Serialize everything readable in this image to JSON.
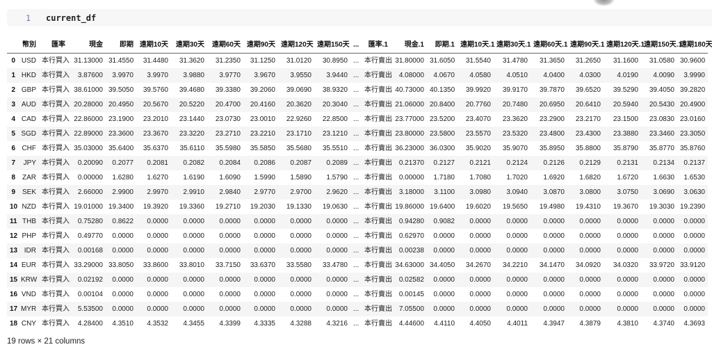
{
  "cell": {
    "line_number": "1",
    "code": "current_df"
  },
  "table": {
    "columns": [
      "幣別",
      "匯率",
      "現金",
      "即期",
      "遠期10天",
      "遠期30天",
      "遠期60天",
      "遠期90天",
      "遠期120天",
      "遠期150天",
      "...",
      "匯率.1",
      "現金.1",
      "即期.1",
      "遠期10天.1",
      "遠期30天.1",
      "遠期60天.1",
      "遠期90天.1",
      "遠期120天.1",
      "遠期150天.1",
      "遠期180天.1"
    ],
    "rows": [
      {
        "index": "0",
        "cells": [
          "USD",
          "本行買入",
          "31.13000",
          "31.4550",
          "31.4480",
          "31.3620",
          "31.2350",
          "31.1250",
          "31.0120",
          "30.8950",
          "...",
          "本行賣出",
          "31.80000",
          "31.6050",
          "31.5540",
          "31.4780",
          "31.3650",
          "31.2650",
          "31.1600",
          "31.0580",
          "30.9600"
        ]
      },
      {
        "index": "1",
        "cells": [
          "HKD",
          "本行買入",
          "3.87600",
          "3.9970",
          "3.9970",
          "3.9880",
          "3.9770",
          "3.9670",
          "3.9550",
          "3.9440",
          "...",
          "本行賣出",
          "4.08000",
          "4.0670",
          "4.0580",
          "4.0510",
          "4.0400",
          "4.0300",
          "4.0190",
          "4.0090",
          "3.9990"
        ]
      },
      {
        "index": "2",
        "cells": [
          "GBP",
          "本行買入",
          "38.61000",
          "39.5050",
          "39.5760",
          "39.4680",
          "39.3380",
          "39.2060",
          "39.0690",
          "38.9320",
          "...",
          "本行賣出",
          "40.73000",
          "40.1350",
          "39.9920",
          "39.9170",
          "39.7870",
          "39.6520",
          "39.5290",
          "39.4050",
          "39.2820"
        ]
      },
      {
        "index": "3",
        "cells": [
          "AUD",
          "本行買入",
          "20.28000",
          "20.4950",
          "20.5670",
          "20.5220",
          "20.4700",
          "20.4160",
          "20.3620",
          "20.3040",
          "...",
          "本行賣出",
          "21.06000",
          "20.8400",
          "20.7760",
          "20.7480",
          "20.6950",
          "20.6410",
          "20.5940",
          "20.5430",
          "20.4900"
        ]
      },
      {
        "index": "4",
        "cells": [
          "CAD",
          "本行買入",
          "22.86000",
          "23.1900",
          "23.2010",
          "23.1440",
          "23.0730",
          "23.0010",
          "22.9260",
          "22.8500",
          "...",
          "本行賣出",
          "23.77000",
          "23.5200",
          "23.4070",
          "23.3620",
          "23.2900",
          "23.2170",
          "23.1500",
          "23.0830",
          "23.0160"
        ]
      },
      {
        "index": "5",
        "cells": [
          "SGD",
          "本行買入",
          "22.89000",
          "23.3600",
          "23.3670",
          "23.3220",
          "23.2710",
          "23.2210",
          "23.1710",
          "23.1210",
          "...",
          "本行賣出",
          "23.80000",
          "23.5800",
          "23.5570",
          "23.5320",
          "23.4800",
          "23.4300",
          "23.3880",
          "23.3460",
          "23.3050"
        ]
      },
      {
        "index": "6",
        "cells": [
          "CHF",
          "本行買入",
          "35.03000",
          "35.6400",
          "35.6370",
          "35.6110",
          "35.5980",
          "35.5850",
          "35.5680",
          "35.5510",
          "...",
          "本行賣出",
          "36.23000",
          "36.0300",
          "35.9020",
          "35.9070",
          "35.8950",
          "35.8800",
          "35.8790",
          "35.8770",
          "35.8760"
        ]
      },
      {
        "index": "7",
        "cells": [
          "JPY",
          "本行買入",
          "0.20090",
          "0.2077",
          "0.2081",
          "0.2082",
          "0.2084",
          "0.2086",
          "0.2087",
          "0.2089",
          "...",
          "本行賣出",
          "0.21370",
          "0.2127",
          "0.2121",
          "0.2124",
          "0.2126",
          "0.2129",
          "0.2131",
          "0.2134",
          "0.2137"
        ]
      },
      {
        "index": "8",
        "cells": [
          "ZAR",
          "本行買入",
          "0.00000",
          "1.6280",
          "1.6270",
          "1.6190",
          "1.6090",
          "1.5990",
          "1.5890",
          "1.5790",
          "...",
          "本行賣出",
          "0.00000",
          "1.7180",
          "1.7080",
          "1.7020",
          "1.6920",
          "1.6820",
          "1.6720",
          "1.6630",
          "1.6530"
        ]
      },
      {
        "index": "9",
        "cells": [
          "SEK",
          "本行買入",
          "2.66000",
          "2.9900",
          "2.9970",
          "2.9910",
          "2.9840",
          "2.9770",
          "2.9700",
          "2.9620",
          "...",
          "本行賣出",
          "3.18000",
          "3.1100",
          "3.0980",
          "3.0940",
          "3.0870",
          "3.0800",
          "3.0750",
          "3.0690",
          "3.0630"
        ]
      },
      {
        "index": "10",
        "cells": [
          "NZD",
          "本行買入",
          "19.01000",
          "19.3400",
          "19.3920",
          "19.3360",
          "19.2710",
          "19.2030",
          "19.1330",
          "19.0630",
          "...",
          "本行賣出",
          "19.86000",
          "19.6400",
          "19.6020",
          "19.5650",
          "19.4980",
          "19.4310",
          "19.3670",
          "19.3030",
          "19.2390"
        ]
      },
      {
        "index": "11",
        "cells": [
          "THB",
          "本行買入",
          "0.75280",
          "0.8622",
          "0.0000",
          "0.0000",
          "0.0000",
          "0.0000",
          "0.0000",
          "0.0000",
          "...",
          "本行賣出",
          "0.94280",
          "0.9082",
          "0.0000",
          "0.0000",
          "0.0000",
          "0.0000",
          "0.0000",
          "0.0000",
          "0.0000"
        ]
      },
      {
        "index": "12",
        "cells": [
          "PHP",
          "本行買入",
          "0.49770",
          "0.0000",
          "0.0000",
          "0.0000",
          "0.0000",
          "0.0000",
          "0.0000",
          "0.0000",
          "...",
          "本行賣出",
          "0.62970",
          "0.0000",
          "0.0000",
          "0.0000",
          "0.0000",
          "0.0000",
          "0.0000",
          "0.0000",
          "0.0000"
        ]
      },
      {
        "index": "13",
        "cells": [
          "IDR",
          "本行買入",
          "0.00168",
          "0.0000",
          "0.0000",
          "0.0000",
          "0.0000",
          "0.0000",
          "0.0000",
          "0.0000",
          "...",
          "本行賣出",
          "0.00238",
          "0.0000",
          "0.0000",
          "0.0000",
          "0.0000",
          "0.0000",
          "0.0000",
          "0.0000",
          "0.0000"
        ]
      },
      {
        "index": "14",
        "cells": [
          "EUR",
          "本行買入",
          "33.29000",
          "33.8050",
          "33.8600",
          "33.8010",
          "33.7150",
          "33.6370",
          "33.5580",
          "33.4780",
          "...",
          "本行賣出",
          "34.63000",
          "34.4050",
          "34.2670",
          "34.2210",
          "34.1470",
          "34.0920",
          "34.0320",
          "33.9720",
          "33.9120"
        ]
      },
      {
        "index": "15",
        "cells": [
          "KRW",
          "本行買入",
          "0.02192",
          "0.0000",
          "0.0000",
          "0.0000",
          "0.0000",
          "0.0000",
          "0.0000",
          "0.0000",
          "...",
          "本行賣出",
          "0.02582",
          "0.0000",
          "0.0000",
          "0.0000",
          "0.0000",
          "0.0000",
          "0.0000",
          "0.0000",
          "0.0000"
        ]
      },
      {
        "index": "16",
        "cells": [
          "VND",
          "本行買入",
          "0.00104",
          "0.0000",
          "0.0000",
          "0.0000",
          "0.0000",
          "0.0000",
          "0.0000",
          "0.0000",
          "...",
          "本行賣出",
          "0.00145",
          "0.0000",
          "0.0000",
          "0.0000",
          "0.0000",
          "0.0000",
          "0.0000",
          "0.0000",
          "0.0000"
        ]
      },
      {
        "index": "17",
        "cells": [
          "MYR",
          "本行買入",
          "5.53500",
          "0.0000",
          "0.0000",
          "0.0000",
          "0.0000",
          "0.0000",
          "0.0000",
          "0.0000",
          "...",
          "本行賣出",
          "7.05500",
          "0.0000",
          "0.0000",
          "0.0000",
          "0.0000",
          "0.0000",
          "0.0000",
          "0.0000",
          "0.0000"
        ]
      },
      {
        "index": "18",
        "cells": [
          "CNY",
          "本行買入",
          "4.28400",
          "4.3510",
          "4.3532",
          "4.3455",
          "4.3399",
          "4.3335",
          "4.3288",
          "4.3216",
          "...",
          "本行賣出",
          "4.44600",
          "4.4110",
          "4.4050",
          "4.4011",
          "4.3947",
          "4.3879",
          "4.3810",
          "4.3740",
          "4.3693"
        ]
      }
    ],
    "footer": "19 rows × 21 columns"
  },
  "colors": {
    "cell_background": "#f7f7f7",
    "line_number": "#7c66c4",
    "row_stripe": "#f5f5f5",
    "header_border": "#666666"
  }
}
